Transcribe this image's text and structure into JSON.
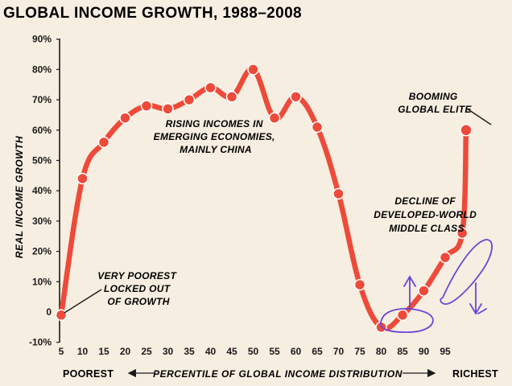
{
  "chart_data": {
    "type": "line",
    "title": "GLOBAL INCOME GROWTH, 1988–2008",
    "ylabel": "REAL INCOME GROWTH",
    "xlabel": "PERCENTILE OF GLOBAL INCOME DISTRIBUTION",
    "x_left_label": "POOREST",
    "x_right_label": "RICHEST",
    "xlim": [
      5,
      100
    ],
    "ylim": [
      -10,
      90
    ],
    "x_ticks": [
      "5",
      "10",
      "15",
      "20",
      "25",
      "30",
      "35",
      "40",
      "45",
      "50",
      "55",
      "60",
      "65",
      "70",
      "75",
      "80",
      "85",
      "90",
      "95"
    ],
    "y_ticks": [
      "-10%",
      "0",
      "10%",
      "20%",
      "30%",
      "40%",
      "50%",
      "60%",
      "70%",
      "80%",
      "90%"
    ],
    "series": [
      {
        "name": "Real income growth",
        "color": "#ee4a3a",
        "x": [
          5,
          10,
          15,
          20,
          25,
          30,
          35,
          40,
          45,
          50,
          55,
          60,
          65,
          70,
          75,
          80,
          85,
          90,
          95,
          99,
          99.9
        ],
        "values": [
          -1,
          44,
          56,
          64,
          68,
          67,
          70,
          74,
          71,
          80,
          64,
          71,
          61,
          39,
          9,
          -5,
          -1,
          7,
          18,
          26,
          60
        ]
      }
    ],
    "annotations": [
      {
        "lines": [
          "RISING INCOMES IN",
          "EMERGING ECONOMIES,",
          "MAINLY CHINA"
        ]
      },
      {
        "lines": [
          "VERY POOREST",
          "LOCKED OUT",
          "OF GROWTH"
        ]
      },
      {
        "lines": [
          "BOOMING",
          "GLOBAL ELITE"
        ]
      },
      {
        "lines": [
          "DECLINE OF",
          "DEVELOPED-WORLD",
          "MIDDLE CLASS"
        ]
      }
    ],
    "grid": false,
    "handwritten_marks_color": "#6a45d6"
  }
}
